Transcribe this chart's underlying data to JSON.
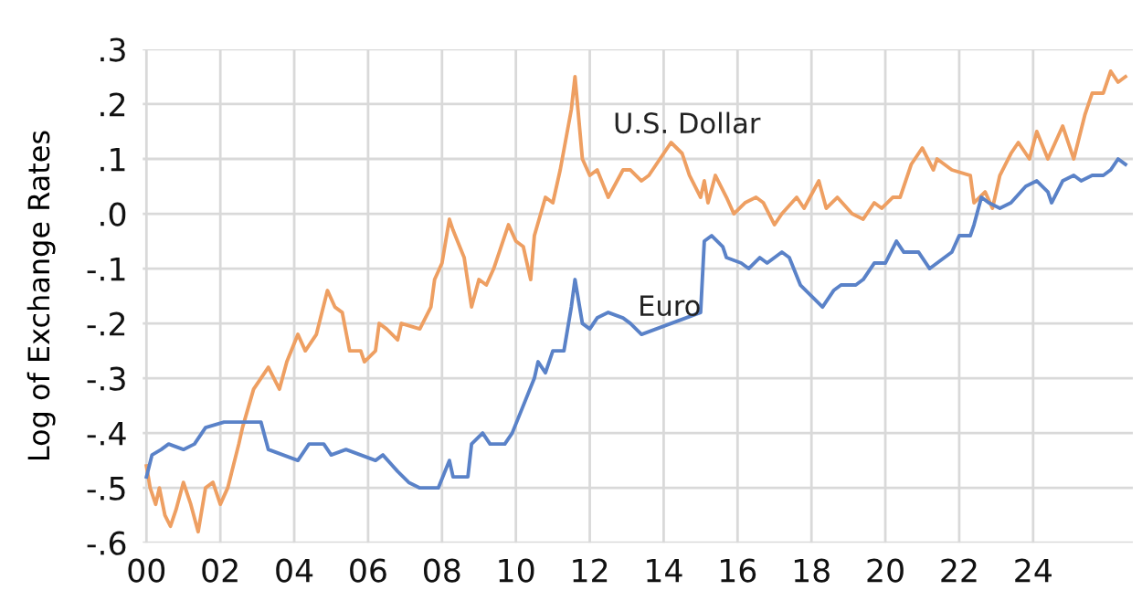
{
  "chart_data": {
    "type": "line",
    "ylabel": "Log of Exchange Rates",
    "xlim": [
      1999.9,
      2026.7
    ],
    "ylim": [
      -0.6,
      0.3
    ],
    "xticks": [
      {
        "value": 2000,
        "label": "00"
      },
      {
        "value": 2002,
        "label": "02"
      },
      {
        "value": 2004,
        "label": "04"
      },
      {
        "value": 2006,
        "label": "06"
      },
      {
        "value": 2008,
        "label": "08"
      },
      {
        "value": 2010,
        "label": "10"
      },
      {
        "value": 2012,
        "label": "12"
      },
      {
        "value": 2014,
        "label": "14"
      },
      {
        "value": 2016,
        "label": "16"
      },
      {
        "value": 2018,
        "label": "18"
      },
      {
        "value": 2020,
        "label": "20"
      },
      {
        "value": 2022,
        "label": "22"
      },
      {
        "value": 2024,
        "label": "24"
      }
    ],
    "yticks": [
      {
        "value": -0.6,
        "label": "-.6"
      },
      {
        "value": -0.5,
        "label": "-.5"
      },
      {
        "value": -0.4,
        "label": "-.4"
      },
      {
        "value": -0.3,
        "label": "-.3"
      },
      {
        "value": -0.2,
        "label": "-.2"
      },
      {
        "value": -0.1,
        "label": "-.1"
      },
      {
        "value": 0.0,
        "label": ".0"
      },
      {
        "value": 0.1,
        "label": ".1"
      },
      {
        "value": 0.2,
        "label": ".2"
      },
      {
        "value": 0.3,
        "label": ".3"
      }
    ],
    "grid": true,
    "legend": false,
    "marker": "none",
    "line_style": "solid",
    "series": [
      {
        "name": "U.S. Dollar",
        "color": "#ee9f62",
        "x": [
          2000.0,
          2000.1,
          2000.25,
          2000.35,
          2000.5,
          2000.65,
          2000.8,
          2001.0,
          2001.2,
          2001.4,
          2001.6,
          2001.8,
          2002.0,
          2002.2,
          2002.5,
          2002.6,
          2002.9,
          2003.3,
          2003.6,
          2003.8,
          2004.1,
          2004.3,
          2004.6,
          2004.9,
          2005.1,
          2005.3,
          2005.5,
          2005.8,
          2005.9,
          2006.2,
          2006.3,
          2006.5,
          2006.8,
          2006.9,
          2007.4,
          2007.7,
          2007.8,
          2008.0,
          2008.2,
          2008.3,
          2008.6,
          2008.8,
          2009.0,
          2009.2,
          2009.4,
          2009.8,
          2010.0,
          2010.2,
          2010.4,
          2010.5,
          2010.8,
          2011.0,
          2011.2,
          2011.5,
          2011.6,
          2011.8,
          2012.0,
          2012.2,
          2012.5,
          2012.9,
          2013.1,
          2013.4,
          2013.6,
          2013.9,
          2014.2,
          2014.5,
          2014.7,
          2015.0,
          2015.1,
          2015.2,
          2015.4,
          2015.7,
          2015.9,
          2016.2,
          2016.5,
          2016.7,
          2017.0,
          2017.2,
          2017.6,
          2017.8,
          2018.2,
          2018.4,
          2018.7,
          2019.1,
          2019.4,
          2019.7,
          2019.9,
          2020.2,
          2020.4,
          2020.7,
          2021.0,
          2021.3,
          2021.4,
          2021.8,
          2022.3,
          2022.4,
          2022.7,
          2022.9,
          2023.1,
          2023.4,
          2023.6,
          2023.9,
          2024.1,
          2024.4,
          2024.8,
          2025.1,
          2025.4,
          2025.6,
          2025.9,
          2026.1,
          2026.3,
          2026.5
        ],
        "values": [
          -0.46,
          -0.5,
          -0.53,
          -0.5,
          -0.55,
          -0.57,
          -0.54,
          -0.49,
          -0.53,
          -0.58,
          -0.5,
          -0.49,
          -0.53,
          -0.5,
          -0.42,
          -0.39,
          -0.32,
          -0.28,
          -0.32,
          -0.27,
          -0.22,
          -0.25,
          -0.22,
          -0.14,
          -0.17,
          -0.18,
          -0.25,
          -0.25,
          -0.27,
          -0.25,
          -0.2,
          -0.21,
          -0.23,
          -0.2,
          -0.21,
          -0.17,
          -0.12,
          -0.09,
          -0.01,
          -0.03,
          -0.08,
          -0.17,
          -0.12,
          -0.13,
          -0.1,
          -0.02,
          -0.05,
          -0.06,
          -0.12,
          -0.04,
          0.03,
          0.02,
          0.08,
          0.19,
          0.25,
          0.1,
          0.07,
          0.08,
          0.03,
          0.08,
          0.08,
          0.06,
          0.07,
          0.1,
          0.13,
          0.11,
          0.07,
          0.03,
          0.06,
          0.02,
          0.07,
          0.03,
          0.0,
          0.02,
          0.03,
          0.02,
          -0.02,
          0.0,
          0.03,
          0.01,
          0.06,
          0.01,
          0.03,
          0.0,
          -0.01,
          0.02,
          0.01,
          0.03,
          0.03,
          0.09,
          0.12,
          0.08,
          0.1,
          0.08,
          0.07,
          0.02,
          0.04,
          0.01,
          0.07,
          0.11,
          0.13,
          0.1,
          0.15,
          0.1,
          0.16,
          0.1,
          0.18,
          0.22,
          0.22,
          0.26,
          0.24,
          0.25
        ]
      },
      {
        "name": "Euro",
        "color": "#5a82c8",
        "x": [
          2000.0,
          2000.15,
          2000.4,
          2000.6,
          2001.0,
          2001.3,
          2001.6,
          2002.1,
          2002.3,
          2002.6,
          2003.1,
          2003.3,
          2004.1,
          2004.4,
          2004.8,
          2005.0,
          2005.4,
          2005.8,
          2006.2,
          2006.4,
          2006.8,
          2007.1,
          2007.4,
          2007.8,
          2007.9,
          2008.2,
          2008.3,
          2008.7,
          2008.8,
          2009.1,
          2009.3,
          2009.7,
          2009.9,
          2010.2,
          2010.5,
          2010.6,
          2010.8,
          2011.0,
          2011.3,
          2011.5,
          2011.6,
          2011.8,
          2012.0,
          2012.2,
          2012.5,
          2012.9,
          2013.1,
          2013.4,
          2013.8,
          2014.2,
          2014.6,
          2015.0,
          2015.1,
          2015.3,
          2015.6,
          2015.7,
          2016.1,
          2016.3,
          2016.6,
          2016.8,
          2017.2,
          2017.4,
          2017.7,
          2018.0,
          2018.3,
          2018.6,
          2018.8,
          2019.2,
          2019.4,
          2019.7,
          2020.0,
          2020.3,
          2020.5,
          2020.9,
          2021.2,
          2021.4,
          2021.8,
          2022.0,
          2022.3,
          2022.4,
          2022.6,
          2022.8,
          2023.1,
          2023.4,
          2023.8,
          2024.1,
          2024.4,
          2024.5,
          2024.8,
          2025.1,
          2025.3,
          2025.6,
          2025.9,
          2026.1,
          2026.3,
          2026.5
        ],
        "values": [
          -0.48,
          -0.44,
          -0.43,
          -0.42,
          -0.43,
          -0.42,
          -0.39,
          -0.38,
          -0.38,
          -0.38,
          -0.38,
          -0.43,
          -0.45,
          -0.42,
          -0.42,
          -0.44,
          -0.43,
          -0.44,
          -0.45,
          -0.44,
          -0.47,
          -0.49,
          -0.5,
          -0.5,
          -0.5,
          -0.45,
          -0.48,
          -0.48,
          -0.42,
          -0.4,
          -0.42,
          -0.42,
          -0.4,
          -0.35,
          -0.3,
          -0.27,
          -0.29,
          -0.25,
          -0.25,
          -0.17,
          -0.12,
          -0.2,
          -0.21,
          -0.19,
          -0.18,
          -0.19,
          -0.2,
          -0.22,
          -0.21,
          -0.2,
          -0.19,
          -0.18,
          -0.05,
          -0.04,
          -0.06,
          -0.08,
          -0.09,
          -0.1,
          -0.08,
          -0.09,
          -0.07,
          -0.08,
          -0.13,
          -0.15,
          -0.17,
          -0.14,
          -0.13,
          -0.13,
          -0.12,
          -0.09,
          -0.09,
          -0.05,
          -0.07,
          -0.07,
          -0.1,
          -0.09,
          -0.07,
          -0.04,
          -0.04,
          -0.02,
          0.03,
          0.02,
          0.01,
          0.02,
          0.05,
          0.06,
          0.04,
          0.02,
          0.06,
          0.07,
          0.06,
          0.07,
          0.07,
          0.08,
          0.1,
          0.09
        ]
      }
    ]
  }
}
